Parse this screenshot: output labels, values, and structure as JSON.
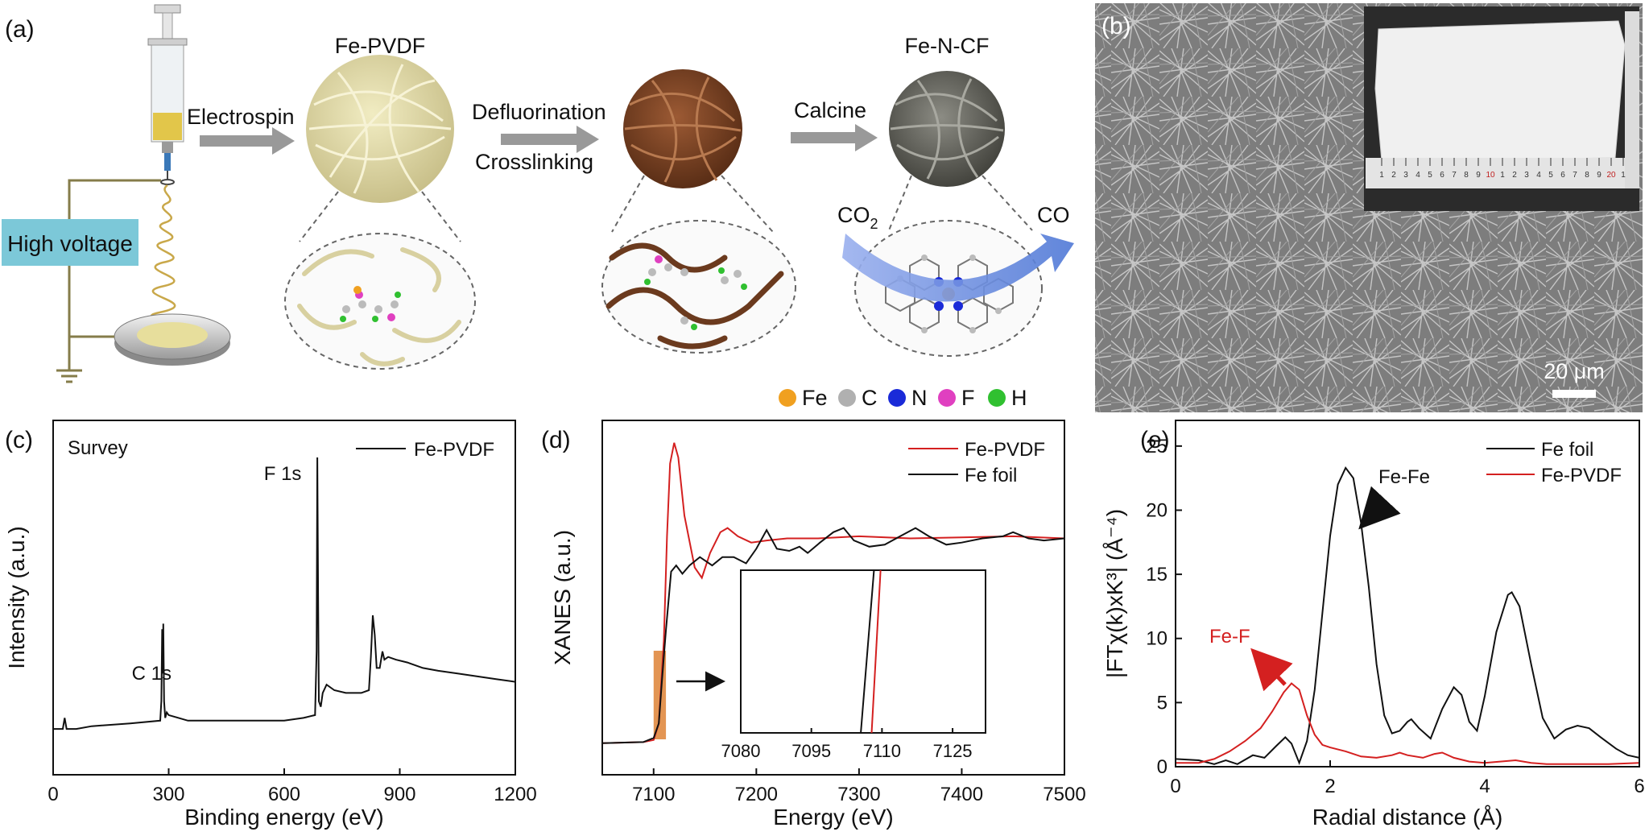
{
  "panel_labels": {
    "a": "(a)",
    "b": "(b)",
    "c": "(c)",
    "d": "(d)",
    "e": "(e)"
  },
  "schematic": {
    "high_voltage": "High voltage",
    "step1": "Electrospin",
    "step2a": "Defluorination",
    "step2b": "Crosslinking",
    "step3": "Calcine",
    "material1": "Fe-PVDF",
    "material3": "Fe-N-CF",
    "co2_main": "CO",
    "co2_sub": "2",
    "co": "CO",
    "legend": [
      {
        "symbol": "Fe",
        "color": "#f0a020"
      },
      {
        "symbol": "C",
        "color": "#b0b0b0"
      },
      {
        "symbol": "N",
        "color": "#1a2ad8"
      },
      {
        "symbol": "F",
        "color": "#e040c0"
      },
      {
        "symbol": "H",
        "color": "#30c030"
      }
    ]
  },
  "sem": {
    "scale_bar": "20 μm",
    "ruler_marks": [
      "1",
      "2",
      "3",
      "4",
      "5",
      "6",
      "7",
      "8",
      "9",
      "10",
      "1",
      "2",
      "3",
      "4",
      "5",
      "6",
      "7",
      "8",
      "9",
      "20",
      "1"
    ]
  },
  "chart_data": [
    {
      "id": "c",
      "type": "line",
      "annotation": "Survey",
      "xlabel": "Binding energy (eV)",
      "ylabel": "Intensity (a.u.)",
      "xlim": [
        0,
        1200
      ],
      "xticks": [
        "0",
        "300",
        "600",
        "900",
        "1200"
      ],
      "peak_labels": [
        {
          "text": "C 1s",
          "x": 285
        },
        {
          "text": "F 1s",
          "x": 688
        }
      ],
      "series": [
        {
          "name": "Fe-PVDF",
          "color": "#111111",
          "points": [
            [
              0,
              2
            ],
            [
              25,
              2
            ],
            [
              30,
              6
            ],
            [
              35,
              2
            ],
            [
              60,
              2
            ],
            [
              100,
              3
            ],
            [
              200,
              4
            ],
            [
              278,
              5
            ],
            [
              281,
              12
            ],
            [
              283,
              38
            ],
            [
              285,
              22
            ],
            [
              286,
              40
            ],
            [
              288,
              12
            ],
            [
              291,
              6
            ],
            [
              295,
              8
            ],
            [
              300,
              7
            ],
            [
              350,
              5
            ],
            [
              400,
              5
            ],
            [
              500,
              5
            ],
            [
              600,
              5
            ],
            [
              650,
              6
            ],
            [
              680,
              7
            ],
            [
              684,
              30
            ],
            [
              686,
              100
            ],
            [
              688,
              50
            ],
            [
              690,
              12
            ],
            [
              695,
              10
            ],
            [
              700,
              15
            ],
            [
              710,
              18
            ],
            [
              730,
              16
            ],
            [
              760,
              15
            ],
            [
              800,
              15
            ],
            [
              820,
              16
            ],
            [
              825,
              28
            ],
            [
              830,
              43
            ],
            [
              835,
              36
            ],
            [
              840,
              24
            ],
            [
              848,
              24
            ],
            [
              855,
              30
            ],
            [
              860,
              27
            ],
            [
              870,
              28
            ],
            [
              890,
              27
            ],
            [
              920,
              26
            ],
            [
              960,
              24
            ],
            [
              1000,
              23
            ],
            [
              1050,
              22
            ],
            [
              1100,
              21
            ],
            [
              1150,
              20
            ],
            [
              1200,
              19
            ]
          ]
        }
      ]
    },
    {
      "id": "d",
      "type": "line",
      "xlabel": "Energy (eV)",
      "ylabel": "XANES (a.u.)",
      "xlim": [
        7050,
        7500
      ],
      "ylim": [
        0,
        1.55
      ],
      "xticks": [
        "7100",
        "7200",
        "7300",
        "7400",
        "7500"
      ],
      "series": [
        {
          "name": "Fe-PVDF",
          "color": "#d42020",
          "points": [
            [
              7050,
              0.005
            ],
            [
              7090,
              0.01
            ],
            [
              7100,
              0.02
            ],
            [
              7105,
              0.1
            ],
            [
              7110,
              0.5
            ],
            [
              7113,
              1.0
            ],
            [
              7116,
              1.35
            ],
            [
              7120,
              1.45
            ],
            [
              7124,
              1.38
            ],
            [
              7130,
              1.1
            ],
            [
              7140,
              0.85
            ],
            [
              7147,
              0.8
            ],
            [
              7155,
              0.92
            ],
            [
              7165,
              1.02
            ],
            [
              7172,
              1.04
            ],
            [
              7182,
              1.0
            ],
            [
              7195,
              0.97
            ],
            [
              7210,
              0.98
            ],
            [
              7230,
              0.99
            ],
            [
              7260,
              0.99
            ],
            [
              7300,
              1.0
            ],
            [
              7350,
              0.99
            ],
            [
              7400,
              0.995
            ],
            [
              7450,
              1.0
            ],
            [
              7500,
              0.99
            ]
          ]
        },
        {
          "name": "Fe foil",
          "color": "#111111",
          "points": [
            [
              7050,
              0.005
            ],
            [
              7090,
              0.01
            ],
            [
              7100,
              0.03
            ],
            [
              7105,
              0.1
            ],
            [
              7108,
              0.3
            ],
            [
              7112,
              0.55
            ],
            [
              7117,
              0.83
            ],
            [
              7122,
              0.86
            ],
            [
              7128,
              0.82
            ],
            [
              7135,
              0.86
            ],
            [
              7145,
              0.9
            ],
            [
              7157,
              0.86
            ],
            [
              7167,
              0.9
            ],
            [
              7178,
              0.9
            ],
            [
              7190,
              0.87
            ],
            [
              7200,
              0.94
            ],
            [
              7210,
              1.03
            ],
            [
              7220,
              0.94
            ],
            [
              7232,
              0.93
            ],
            [
              7242,
              0.95
            ],
            [
              7250,
              0.92
            ],
            [
              7262,
              0.97
            ],
            [
              7275,
              1.02
            ],
            [
              7285,
              1.04
            ],
            [
              7295,
              0.98
            ],
            [
              7310,
              0.95
            ],
            [
              7325,
              0.96
            ],
            [
              7340,
              1.0
            ],
            [
              7355,
              1.04
            ],
            [
              7368,
              1.0
            ],
            [
              7385,
              0.96
            ],
            [
              7400,
              0.97
            ],
            [
              7420,
              0.99
            ],
            [
              7440,
              1.0
            ],
            [
              7450,
              1.02
            ],
            [
              7465,
              0.99
            ],
            [
              7480,
              0.98
            ],
            [
              7500,
              0.99
            ]
          ]
        }
      ],
      "inset": {
        "xlim": [
          7080,
          7132
        ],
        "xticks": [
          "7080",
          "7095",
          "7110",
          "7125"
        ],
        "lines": [
          {
            "series": "Fe foil",
            "x0": 7105.5,
            "x1": 7108.3
          },
          {
            "series": "Fe-PVDF",
            "x0": 7107.8,
            "x1": 7109.7
          }
        ]
      },
      "highlight": {
        "x0": 7100,
        "x1": 7112,
        "color": "#e08a40"
      }
    },
    {
      "id": "e",
      "type": "line",
      "xlabel": "Radial distance (Å)",
      "ylabel": "|FTχ(k)xK³| (Å⁻⁴)",
      "xlim": [
        0,
        6
      ],
      "ylim": [
        0,
        27
      ],
      "xticks": [
        "0",
        "2",
        "4",
        "6"
      ],
      "yticks": [
        "0",
        "5",
        "10",
        "15",
        "20",
        "25"
      ],
      "annotations": [
        {
          "text": "Fe-Fe",
          "color": "#111111"
        },
        {
          "text": "Fe-F",
          "color": "#d42020"
        }
      ],
      "series": [
        {
          "name": "Fe foil",
          "color": "#111111",
          "points": [
            [
              0,
              0.6
            ],
            [
              0.3,
              0.5
            ],
            [
              0.5,
              0.2
            ],
            [
              0.65,
              0.5
            ],
            [
              0.8,
              0.2
            ],
            [
              1.0,
              0.9
            ],
            [
              1.15,
              0.7
            ],
            [
              1.3,
              1.6
            ],
            [
              1.42,
              2.3
            ],
            [
              1.5,
              1.8
            ],
            [
              1.6,
              0.3
            ],
            [
              1.7,
              2.0
            ],
            [
              1.8,
              6.0
            ],
            [
              1.9,
              12.0
            ],
            [
              2.0,
              18.0
            ],
            [
              2.1,
              22.0
            ],
            [
              2.2,
              23.3
            ],
            [
              2.3,
              22.5
            ],
            [
              2.4,
              19.0
            ],
            [
              2.5,
              14.0
            ],
            [
              2.6,
              8.0
            ],
            [
              2.7,
              4.0
            ],
            [
              2.8,
              2.6
            ],
            [
              2.9,
              2.8
            ],
            [
              3.0,
              3.5
            ],
            [
              3.05,
              3.7
            ],
            [
              3.15,
              3.0
            ],
            [
              3.3,
              2.2
            ],
            [
              3.45,
              4.5
            ],
            [
              3.6,
              6.2
            ],
            [
              3.7,
              5.6
            ],
            [
              3.8,
              3.5
            ],
            [
              3.9,
              2.8
            ],
            [
              4.0,
              5.5
            ],
            [
              4.15,
              10.5
            ],
            [
              4.3,
              13.4
            ],
            [
              4.35,
              13.6
            ],
            [
              4.45,
              12.5
            ],
            [
              4.6,
              8.0
            ],
            [
              4.75,
              3.8
            ],
            [
              4.9,
              2.2
            ],
            [
              5.05,
              2.9
            ],
            [
              5.2,
              3.2
            ],
            [
              5.35,
              3.0
            ],
            [
              5.5,
              2.3
            ],
            [
              5.7,
              1.4
            ],
            [
              5.85,
              0.9
            ],
            [
              6.0,
              0.7
            ]
          ]
        },
        {
          "name": "Fe-PVDF",
          "color": "#d42020",
          "points": [
            [
              0,
              0.3
            ],
            [
              0.3,
              0.3
            ],
            [
              0.5,
              0.6
            ],
            [
              0.7,
              1.2
            ],
            [
              0.9,
              2.0
            ],
            [
              1.1,
              3.0
            ],
            [
              1.25,
              4.3
            ],
            [
              1.4,
              5.8
            ],
            [
              1.5,
              6.5
            ],
            [
              1.6,
              6.0
            ],
            [
              1.7,
              4.0
            ],
            [
              1.8,
              2.5
            ],
            [
              1.9,
              1.7
            ],
            [
              2.0,
              1.5
            ],
            [
              2.2,
              1.2
            ],
            [
              2.4,
              0.8
            ],
            [
              2.6,
              0.7
            ],
            [
              2.8,
              0.9
            ],
            [
              2.9,
              1.1
            ],
            [
              3.0,
              0.9
            ],
            [
              3.2,
              0.7
            ],
            [
              3.35,
              1.0
            ],
            [
              3.45,
              1.1
            ],
            [
              3.6,
              0.7
            ],
            [
              3.8,
              0.4
            ],
            [
              4.0,
              0.3
            ],
            [
              4.2,
              0.4
            ],
            [
              4.4,
              0.5
            ],
            [
              4.6,
              0.3
            ],
            [
              4.8,
              0.2
            ],
            [
              5.0,
              0.2
            ],
            [
              5.3,
              0.2
            ],
            [
              5.6,
              0.2
            ],
            [
              6.0,
              0.3
            ]
          ]
        }
      ]
    }
  ]
}
